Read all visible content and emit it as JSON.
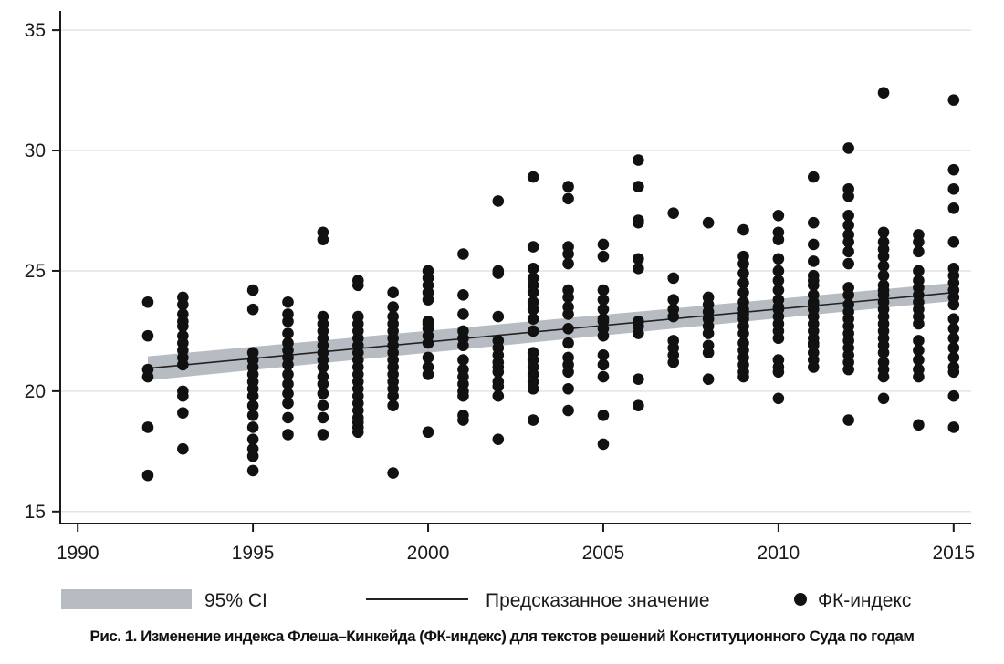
{
  "caption": "Рис. 1. Изменение индекса Флеша–Кинкейда (ФК-индекс) для текстов решений Конституционного Суда по годам",
  "colors": {
    "ci": "#b7bcc3",
    "line": "#222222",
    "points": "#111111",
    "grid": "#e4e4e4",
    "axis": "#1a1a1a"
  },
  "chart_data": {
    "type": "scatter",
    "xlim": [
      1989.5,
      2015.5
    ],
    "ylim": [
      14.5,
      35.8
    ],
    "x_ticks": [
      1990,
      1995,
      2000,
      2005,
      2010,
      2015
    ],
    "y_ticks": [
      15,
      20,
      25,
      30,
      35
    ],
    "grid": "horizontal",
    "legend_placement": "bottom",
    "legend": {
      "ci": "95% CI",
      "fit": "Предсказанное значение",
      "points": "ФК-индекс"
    },
    "fit": {
      "x": [
        1992,
        2015
      ],
      "y": [
        20.95,
        24.1
      ],
      "ci_lower": [
        20.45,
        23.75
      ],
      "ci_upper": [
        21.45,
        24.5
      ]
    },
    "series": [
      {
        "name": "ФК-индекс",
        "x": [
          1992,
          1992,
          1992,
          1992,
          1992,
          1992,
          1993,
          1993,
          1993,
          1993,
          1993,
          1993,
          1993,
          1993,
          1993,
          1993,
          1993,
          1993,
          1993,
          1993,
          1995,
          1995,
          1995,
          1995,
          1995,
          1995,
          1995,
          1995,
          1995,
          1995,
          1995,
          1995,
          1995,
          1995,
          1995,
          1995,
          1996,
          1996,
          1996,
          1996,
          1996,
          1996,
          1996,
          1996,
          1996,
          1996,
          1996,
          1996,
          1996,
          1996,
          1997,
          1997,
          1997,
          1997,
          1997,
          1997,
          1997,
          1997,
          1997,
          1997,
          1997,
          1997,
          1997,
          1997,
          1997,
          1997,
          1998,
          1998,
          1998,
          1998,
          1998,
          1998,
          1998,
          1998,
          1998,
          1998,
          1998,
          1998,
          1998,
          1998,
          1998,
          1998,
          1998,
          1998,
          1998,
          1998,
          1999,
          1999,
          1999,
          1999,
          1999,
          1999,
          1999,
          1999,
          1999,
          1999,
          1999,
          1999,
          1999,
          1999,
          1999,
          1999,
          2000,
          2000,
          2000,
          2000,
          2000,
          2000,
          2000,
          2000,
          2000,
          2000,
          2000,
          2000,
          2000,
          2000,
          2001,
          2001,
          2001,
          2001,
          2001,
          2001,
          2001,
          2001,
          2001,
          2001,
          2001,
          2001,
          2001,
          2001,
          2002,
          2002,
          2002,
          2002,
          2002,
          2002,
          2002,
          2002,
          2002,
          2002,
          2002,
          2002,
          2002,
          2002,
          2003,
          2003,
          2003,
          2003,
          2003,
          2003,
          2003,
          2003,
          2003,
          2003,
          2003,
          2003,
          2003,
          2003,
          2003,
          2003,
          2003,
          2004,
          2004,
          2004,
          2004,
          2004,
          2004,
          2004,
          2004,
          2004,
          2004,
          2004,
          2004,
          2004,
          2004,
          2004,
          2004,
          2005,
          2005,
          2005,
          2005,
          2005,
          2005,
          2005,
          2005,
          2005,
          2005,
          2005,
          2005,
          2005,
          2005,
          2006,
          2006,
          2006,
          2006,
          2006,
          2006,
          2006,
          2006,
          2006,
          2006,
          2006,
          2007,
          2007,
          2007,
          2007,
          2007,
          2007,
          2007,
          2007,
          2007,
          2008,
          2008,
          2008,
          2008,
          2008,
          2008,
          2008,
          2008,
          2008,
          2008,
          2009,
          2009,
          2009,
          2009,
          2009,
          2009,
          2009,
          2009,
          2009,
          2009,
          2009,
          2009,
          2009,
          2009,
          2009,
          2009,
          2009,
          2009,
          2010,
          2010,
          2010,
          2010,
          2010,
          2010,
          2010,
          2010,
          2010,
          2010,
          2010,
          2010,
          2010,
          2010,
          2010,
          2010,
          2010,
          2010,
          2011,
          2011,
          2011,
          2011,
          2011,
          2011,
          2011,
          2011,
          2011,
          2011,
          2011,
          2011,
          2011,
          2011,
          2011,
          2011,
          2011,
          2011,
          2011,
          2011,
          2012,
          2012,
          2012,
          2012,
          2012,
          2012,
          2012,
          2012,
          2012,
          2012,
          2012,
          2012,
          2012,
          2012,
          2012,
          2012,
          2012,
          2012,
          2012,
          2012,
          2012,
          2012,
          2013,
          2013,
          2013,
          2013,
          2013,
          2013,
          2013,
          2013,
          2013,
          2013,
          2013,
          2013,
          2013,
          2013,
          2013,
          2013,
          2013,
          2013,
          2013,
          2013,
          2013,
          2013,
          2014,
          2014,
          2014,
          2014,
          2014,
          2014,
          2014,
          2014,
          2014,
          2014,
          2014,
          2014,
          2014,
          2014,
          2014,
          2014,
          2014,
          2015,
          2015,
          2015,
          2015,
          2015,
          2015,
          2015,
          2015,
          2015,
          2015,
          2015,
          2015,
          2015,
          2015,
          2015,
          2015,
          2015,
          2015,
          2015,
          2015
        ],
        "y": [
          23.7,
          22.3,
          20.9,
          20.6,
          18.5,
          16.5,
          23.9,
          23.6,
          23.2,
          22.9,
          22.7,
          22.3,
          22.0,
          21.7,
          21.4,
          21.1,
          20.0,
          19.8,
          19.1,
          17.6,
          24.2,
          23.4,
          21.6,
          21.3,
          21.0,
          20.7,
          20.4,
          20.1,
          19.8,
          19.4,
          19.0,
          18.5,
          18.0,
          17.6,
          17.3,
          16.7,
          23.7,
          23.2,
          22.9,
          22.4,
          22.0,
          21.7,
          21.4,
          21.1,
          20.7,
          20.3,
          19.9,
          19.5,
          18.9,
          18.2,
          26.6,
          26.3,
          23.1,
          22.8,
          22.5,
          22.2,
          21.9,
          21.6,
          21.3,
          21.0,
          20.6,
          20.3,
          19.9,
          19.4,
          18.9,
          18.2,
          24.6,
          24.4,
          23.1,
          22.8,
          22.5,
          22.2,
          21.9,
          21.6,
          21.3,
          21.0,
          20.7,
          20.4,
          20.1,
          19.8,
          19.5,
          19.2,
          18.9,
          18.7,
          18.5,
          18.3,
          24.1,
          23.5,
          23.1,
          22.8,
          22.5,
          22.2,
          21.9,
          21.6,
          21.3,
          21.0,
          20.7,
          20.4,
          20.1,
          19.8,
          19.4,
          16.6,
          25.0,
          24.7,
          24.4,
          24.1,
          23.8,
          22.9,
          22.6,
          22.3,
          22.0,
          21.4,
          21.0,
          20.7,
          18.3,
          22.8,
          25.7,
          24.0,
          23.2,
          22.5,
          22.2,
          21.9,
          21.3,
          20.9,
          20.6,
          20.3,
          20.0,
          19.8,
          19.0,
          18.8,
          27.9,
          25.0,
          24.9,
          23.1,
          22.1,
          21.8,
          21.5,
          21.2,
          20.8,
          20.4,
          20.2,
          19.8,
          18.0,
          21.0,
          28.9,
          26.0,
          25.1,
          24.7,
          24.4,
          24.1,
          23.7,
          23.4,
          23.0,
          21.6,
          21.3,
          21.0,
          20.7,
          20.4,
          20.1,
          18.8,
          22.5,
          28.5,
          28.0,
          26.0,
          25.7,
          25.3,
          24.2,
          23.9,
          23.5,
          23.2,
          22.0,
          21.4,
          21.1,
          20.8,
          20.1,
          19.2,
          22.6,
          26.1,
          25.6,
          24.2,
          23.8,
          23.4,
          23.0,
          22.6,
          22.3,
          21.5,
          21.1,
          20.6,
          19.0,
          17.8,
          22.9,
          29.6,
          28.5,
          27.1,
          27.0,
          25.5,
          25.1,
          22.9,
          22.7,
          22.4,
          20.5,
          19.4,
          27.4,
          24.7,
          23.8,
          23.4,
          23.1,
          22.1,
          21.8,
          21.5,
          21.2,
          27.0,
          23.9,
          23.6,
          23.3,
          23.0,
          22.7,
          22.4,
          21.9,
          21.6,
          20.5,
          26.7,
          25.6,
          25.3,
          24.9,
          24.5,
          24.1,
          23.7,
          23.4,
          23.0,
          22.7,
          22.4,
          22.0,
          21.7,
          21.4,
          21.1,
          20.8,
          20.6,
          23.2,
          27.3,
          26.6,
          26.3,
          25.5,
          25.0,
          24.6,
          24.2,
          23.8,
          23.4,
          23.1,
          22.8,
          22.5,
          22.2,
          21.3,
          21.0,
          20.8,
          19.7,
          23.5,
          28.9,
          27.0,
          26.1,
          25.4,
          24.8,
          24.4,
          24.0,
          23.7,
          23.4,
          23.1,
          22.8,
          22.5,
          22.2,
          21.9,
          21.6,
          21.3,
          21.0,
          23.6,
          22.0,
          24.6,
          30.1,
          28.4,
          28.1,
          27.3,
          26.9,
          26.5,
          26.2,
          25.8,
          24.3,
          24.0,
          23.6,
          23.3,
          23.0,
          22.7,
          22.4,
          22.1,
          21.8,
          21.5,
          21.2,
          20.9,
          18.8,
          25.3,
          32.4,
          26.6,
          26.2,
          25.9,
          25.6,
          25.2,
          24.8,
          24.4,
          24.0,
          23.7,
          23.4,
          23.1,
          22.8,
          22.5,
          22.2,
          21.9,
          21.6,
          21.2,
          20.9,
          20.6,
          19.7,
          24.2,
          26.5,
          26.2,
          25.8,
          25.0,
          24.6,
          24.3,
          24.0,
          23.7,
          23.4,
          23.1,
          22.8,
          22.1,
          21.7,
          21.3,
          20.9,
          20.6,
          18.6,
          32.1,
          29.2,
          28.4,
          27.6,
          26.2,
          25.1,
          24.8,
          24.5,
          24.2,
          23.9,
          23.6,
          23.0,
          22.6,
          22.2,
          21.8,
          21.4,
          21.0,
          19.8,
          18.5,
          20.8
        ]
      }
    ]
  }
}
